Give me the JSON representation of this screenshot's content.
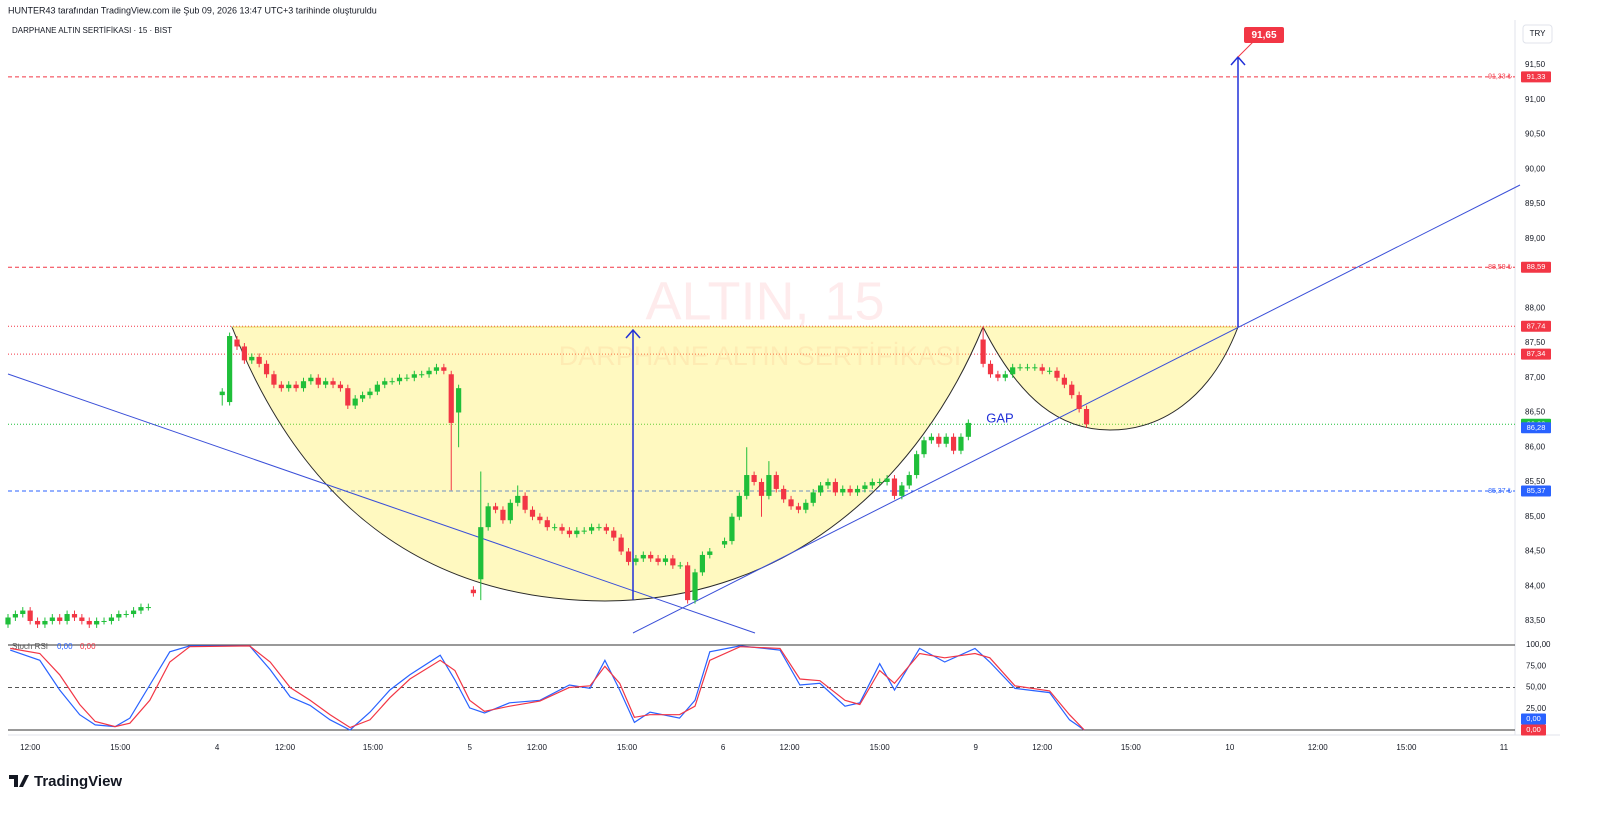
{
  "header": "HUNTER43 tarafından TradingView.com ile Şub 09, 2026 13:47 UTC+3 tarihinde oluşturuldu",
  "footer": "TradingView",
  "chart_data": {
    "type": "candlestick",
    "title": "DARPHANE ALTIN SERTİFİKASI · 15 · BIST",
    "currency": "TRY",
    "watermark": [
      "ALTIN, 15",
      "DARPHANE ALTIN SERTİFİKASI"
    ],
    "annotations": [
      "GAP",
      "91,65"
    ],
    "up_color": "#1fbf3a",
    "down_color": "#f23645",
    "x": [
      0,
      1,
      2,
      3,
      4,
      5,
      6,
      7,
      8,
      9,
      10,
      11,
      12,
      13,
      14,
      15,
      16,
      17,
      18,
      19,
      29,
      30,
      31,
      32,
      33,
      34,
      35,
      36,
      37,
      38,
      39,
      40,
      41,
      42,
      43,
      44,
      45,
      46,
      47,
      48,
      49,
      50,
      51,
      52,
      53,
      54,
      55,
      56,
      57,
      58,
      59,
      60,
      61,
      63,
      64,
      65,
      66,
      67,
      68,
      69,
      70,
      71,
      72,
      73,
      74,
      75,
      76,
      77,
      78,
      79,
      80,
      81,
      82,
      83,
      84,
      85,
      86,
      87,
      88,
      89,
      90,
      91,
      92,
      93,
      94,
      95,
      97,
      98,
      99,
      100,
      101,
      102,
      103,
      104,
      105,
      106,
      107,
      108,
      109,
      110,
      111,
      112,
      113,
      114,
      115,
      116,
      117,
      118,
      119,
      120,
      121,
      122,
      123,
      124,
      125,
      126,
      127,
      128,
      129,
      130,
      132,
      133,
      134,
      135,
      136,
      137,
      138,
      139,
      140,
      141,
      142,
      143,
      144,
      145,
      146
    ],
    "open": [
      83.45,
      83.55,
      83.6,
      83.65,
      83.5,
      83.45,
      83.5,
      83.55,
      83.5,
      83.6,
      83.55,
      83.5,
      83.45,
      83.5,
      83.5,
      83.55,
      83.6,
      83.6,
      83.65,
      83.7,
      86.75,
      86.65,
      87.55,
      87.45,
      87.25,
      87.3,
      87.2,
      87.05,
      86.9,
      86.85,
      86.9,
      86.85,
      86.95,
      87.0,
      86.9,
      86.95,
      86.9,
      86.85,
      86.6,
      86.7,
      86.75,
      86.8,
      86.9,
      86.95,
      86.95,
      87.0,
      87.0,
      87.05,
      87.05,
      87.1,
      87.15,
      87.05,
      86.5,
      83.95,
      84.1,
      84.85,
      85.15,
      85.1,
      84.95,
      85.2,
      85.3,
      85.1,
      85.0,
      84.95,
      84.85,
      84.85,
      84.8,
      84.75,
      84.8,
      84.8,
      84.85,
      84.85,
      84.8,
      84.7,
      84.5,
      84.35,
      84.4,
      84.45,
      84.4,
      84.35,
      84.4,
      84.3,
      84.3,
      83.8,
      84.2,
      84.45,
      84.6,
      84.65,
      85.0,
      85.3,
      85.6,
      85.5,
      85.3,
      85.6,
      85.4,
      85.25,
      85.15,
      85.1,
      85.2,
      85.35,
      85.45,
      85.5,
      85.35,
      85.4,
      85.35,
      85.4,
      85.45,
      85.5,
      85.5,
      85.55,
      85.3,
      85.45,
      85.6,
      85.9,
      86.1,
      86.15,
      86.05,
      86.15,
      85.95,
      86.15,
      87.55,
      87.2,
      87.05,
      87.0,
      87.05,
      87.15,
      87.15,
      87.15,
      87.15,
      87.1,
      87.1,
      87.0,
      86.9,
      86.75,
      86.55
    ],
    "high": [
      83.6,
      83.65,
      83.7,
      83.7,
      83.55,
      83.55,
      83.6,
      83.6,
      83.65,
      83.65,
      83.6,
      83.55,
      83.55,
      83.55,
      83.6,
      83.65,
      83.65,
      83.7,
      83.75,
      83.75,
      86.85,
      87.65,
      87.6,
      87.5,
      87.35,
      87.35,
      87.25,
      87.1,
      86.95,
      86.95,
      86.95,
      87.0,
      87.05,
      87.05,
      87.0,
      87.0,
      86.95,
      86.9,
      86.75,
      86.8,
      86.85,
      86.95,
      87.0,
      87.0,
      87.05,
      87.05,
      87.1,
      87.1,
      87.15,
      87.2,
      87.2,
      87.1,
      86.9,
      84.0,
      85.65,
      85.2,
      85.2,
      85.15,
      85.25,
      85.45,
      85.35,
      85.15,
      85.05,
      85.0,
      84.9,
      84.9,
      84.85,
      84.85,
      84.85,
      84.9,
      84.9,
      84.9,
      84.85,
      84.75,
      84.55,
      84.45,
      84.5,
      84.5,
      84.45,
      84.45,
      84.45,
      84.35,
      84.35,
      84.25,
      84.5,
      84.55,
      84.7,
      85.05,
      85.35,
      86.0,
      85.65,
      85.55,
      85.8,
      85.65,
      85.45,
      85.3,
      85.2,
      85.25,
      85.4,
      85.5,
      85.55,
      85.55,
      85.45,
      85.45,
      85.45,
      85.5,
      85.55,
      85.55,
      85.6,
      85.6,
      85.5,
      85.65,
      85.95,
      86.15,
      86.2,
      86.2,
      86.2,
      86.2,
      86.2,
      86.4,
      87.74,
      87.25,
      87.1,
      87.1,
      87.2,
      87.2,
      87.2,
      87.2,
      87.2,
      87.15,
      87.15,
      87.05,
      86.95,
      86.8,
      86.6
    ],
    "low": [
      83.4,
      83.5,
      83.55,
      83.45,
      83.4,
      83.4,
      83.45,
      83.45,
      83.45,
      83.5,
      83.45,
      83.4,
      83.4,
      83.45,
      83.45,
      83.5,
      83.55,
      83.55,
      83.6,
      83.65,
      86.6,
      86.6,
      87.4,
      87.2,
      87.2,
      87.15,
      87.0,
      86.85,
      86.8,
      86.8,
      86.8,
      86.8,
      86.9,
      86.85,
      86.85,
      86.85,
      86.8,
      86.55,
      86.55,
      86.65,
      86.7,
      86.75,
      86.85,
      86.9,
      86.9,
      86.95,
      86.95,
      87.0,
      87.0,
      87.05,
      87.05,
      85.38,
      86.0,
      83.85,
      83.8,
      84.8,
      85.05,
      84.9,
      84.9,
      85.15,
      85.05,
      84.95,
      84.9,
      84.8,
      84.8,
      84.75,
      84.7,
      84.7,
      84.75,
      84.75,
      84.8,
      84.75,
      84.65,
      84.45,
      84.3,
      84.3,
      84.35,
      84.35,
      84.3,
      84.3,
      84.25,
      84.25,
      83.75,
      83.75,
      84.15,
      84.4,
      84.55,
      84.6,
      84.95,
      85.25,
      85.45,
      85.0,
      85.25,
      85.35,
      85.2,
      85.1,
      85.05,
      85.05,
      85.15,
      85.3,
      85.4,
      85.3,
      85.3,
      85.3,
      85.3,
      85.35,
      85.4,
      85.45,
      85.45,
      85.25,
      85.25,
      85.4,
      85.55,
      85.85,
      86.05,
      86.0,
      86.0,
      85.9,
      85.9,
      86.1,
      87.15,
      87.0,
      86.95,
      86.95,
      87.0,
      87.1,
      87.1,
      87.1,
      87.05,
      87.05,
      86.95,
      86.85,
      86.7,
      86.5,
      86.28
    ],
    "close": [
      83.55,
      83.6,
      83.65,
      83.5,
      83.45,
      83.5,
      83.55,
      83.5,
      83.6,
      83.55,
      83.5,
      83.45,
      83.5,
      83.5,
      83.55,
      83.6,
      83.6,
      83.65,
      83.7,
      83.7,
      86.8,
      87.6,
      87.45,
      87.25,
      87.3,
      87.2,
      87.05,
      86.9,
      86.85,
      86.9,
      86.85,
      86.95,
      87.0,
      86.9,
      86.95,
      86.9,
      86.85,
      86.6,
      86.7,
      86.75,
      86.8,
      86.9,
      86.95,
      86.95,
      87.0,
      87.0,
      87.05,
      87.05,
      87.1,
      87.15,
      87.1,
      86.35,
      86.85,
      83.9,
      84.85,
      85.15,
      85.1,
      84.95,
      85.2,
      85.3,
      85.1,
      85.0,
      84.95,
      84.85,
      84.85,
      84.8,
      84.75,
      84.8,
      84.8,
      84.85,
      84.85,
      84.8,
      84.7,
      84.5,
      84.35,
      84.4,
      84.45,
      84.4,
      84.35,
      84.4,
      84.3,
      84.3,
      83.8,
      84.2,
      84.45,
      84.5,
      84.65,
      85.0,
      85.3,
      85.6,
      85.5,
      85.3,
      85.6,
      85.4,
      85.25,
      85.15,
      85.1,
      85.2,
      85.35,
      85.45,
      85.5,
      85.35,
      85.4,
      85.35,
      85.4,
      85.45,
      85.5,
      85.5,
      85.55,
      85.3,
      85.45,
      85.6,
      85.9,
      86.1,
      86.15,
      86.05,
      86.15,
      85.95,
      86.15,
      86.35,
      87.2,
      87.05,
      87.0,
      87.05,
      87.15,
      87.15,
      87.15,
      87.15,
      87.1,
      87.1,
      87.0,
      86.9,
      86.75,
      86.55,
      86.33
    ],
    "xlim": [
      0,
      204
    ],
    "xticks": [
      {
        "value": 3,
        "label": "12:00"
      },
      {
        "value": 15.2,
        "label": "15:00"
      },
      {
        "value": 28.3,
        "label": "4"
      },
      {
        "value": 37.5,
        "label": "12:00"
      },
      {
        "value": 49.4,
        "label": "15:00"
      },
      {
        "value": 62.5,
        "label": "5"
      },
      {
        "value": 71.6,
        "label": "12:00"
      },
      {
        "value": 83.8,
        "label": "15:00"
      },
      {
        "value": 96.8,
        "label": "6"
      },
      {
        "value": 105.8,
        "label": "12:00"
      },
      {
        "value": 118,
        "label": "15:00"
      },
      {
        "value": 131,
        "label": "9"
      },
      {
        "value": 140,
        "label": "12:00"
      },
      {
        "value": 152,
        "label": "15:00"
      },
      {
        "value": 165.4,
        "label": "10"
      },
      {
        "value": 177.3,
        "label": "12:00"
      },
      {
        "value": 189.3,
        "label": "15:00"
      },
      {
        "value": 202.5,
        "label": "11"
      }
    ],
    "ylim": [
      83.15,
      92.1
    ],
    "yticks": [
      {
        "value": 91.5,
        "label": "91,50"
      },
      {
        "value": 91,
        "label": "91,00"
      },
      {
        "value": 90.5,
        "label": "90,50"
      },
      {
        "value": 90,
        "label": "90,00"
      },
      {
        "value": 89.5,
        "label": "89,50"
      },
      {
        "value": 89,
        "label": "89,00"
      },
      {
        "value": 88,
        "label": "88,00"
      },
      {
        "value": 87.5,
        "label": "87,50"
      },
      {
        "value": 87,
        "label": "87,00"
      },
      {
        "value": 86.5,
        "label": "86,50"
      },
      {
        "value": 86,
        "label": "86,00"
      },
      {
        "value": 85.5,
        "label": "85,50"
      },
      {
        "value": 85,
        "label": "85,00"
      },
      {
        "value": 84.5,
        "label": "84,50"
      },
      {
        "value": 84,
        "label": "84,00"
      },
      {
        "value": 83.5,
        "label": "83,50"
      }
    ],
    "price_lines": [
      {
        "value": 91.33,
        "label": "91,33",
        "note": "91,33 ₺",
        "color": "#f23645",
        "style": "dashed"
      },
      {
        "value": 88.59,
        "label": "88,59",
        "note": "88,59 ₺",
        "color": "#f23645",
        "style": "dashed"
      },
      {
        "value": 87.74,
        "label": "87,74",
        "color": "#f23645",
        "style": "dotted"
      },
      {
        "value": 87.34,
        "label": "87,34",
        "color": "#f23645",
        "style": "dotted"
      },
      {
        "value": 86.33,
        "label": "86,33",
        "color": "#1fbf3a",
        "style": "dotted"
      },
      {
        "value": 86.28,
        "label": "86,28",
        "color": "#2962ff",
        "style": "none"
      },
      {
        "value": 85.37,
        "label": "85,37",
        "note": "85,37 ₺",
        "color": "#2962ff",
        "style": "dashed"
      }
    ],
    "stoch": {
      "title": "Stoch RSI",
      "ylim": [
        0,
        100
      ],
      "yticks": [
        {
          "value": 100,
          "label": "100,00"
        },
        {
          "value": 75,
          "label": "75,00"
        },
        {
          "value": 50,
          "label": "50,00"
        },
        {
          "value": 25,
          "label": "25,00"
        }
      ],
      "levels": [
        50
      ],
      "x": [
        0.3,
        4.3,
        7.0,
        9.7,
        11.8,
        14.5,
        16.5,
        19.2,
        21.9,
        24.6,
        32.7,
        35.5,
        38.2,
        40.9,
        43.6,
        46.3,
        49.0,
        51.7,
        54.4,
        58.5,
        60.5,
        62.5,
        64.5,
        67.9,
        72.0,
        76.0,
        78.8,
        80.8,
        82.8,
        84.8,
        86.9,
        90.9,
        93.0,
        95.0,
        99.1,
        104.5,
        107.2,
        109.9,
        113.3,
        115.3,
        118.0,
        120.0,
        123.4,
        126.8,
        130.9,
        132.9,
        136.3,
        141.0,
        143.7,
        145.7
      ],
      "series": [
        {
          "color": "#2962ff",
          "value_label": "0,00",
          "values": [
            94,
            82,
            47,
            18,
            6,
            4,
            14,
            53,
            92,
            99,
            99,
            71,
            39,
            29,
            12,
            0,
            21,
            47,
            65,
            88,
            59,
            26,
            20,
            32,
            35,
            53,
            49,
            82,
            47,
            9,
            21,
            14,
            35,
            92,
            99,
            94,
            53,
            55,
            28,
            32,
            78,
            47,
            96,
            80,
            96,
            80,
            49,
            44,
            12,
            0
          ]
        },
        {
          "color": "#f23645",
          "value_label": "0,00",
          "values": [
            96,
            90,
            65,
            30,
            10,
            4,
            8,
            35,
            80,
            98,
            99,
            80,
            50,
            35,
            18,
            3,
            12,
            38,
            60,
            82,
            70,
            35,
            22,
            28,
            34,
            50,
            52,
            75,
            55,
            15,
            18,
            18,
            28,
            82,
            98,
            96,
            60,
            58,
            35,
            30,
            70,
            55,
            90,
            85,
            90,
            85,
            52,
            46,
            18,
            0
          ]
        }
      ]
    }
  }
}
